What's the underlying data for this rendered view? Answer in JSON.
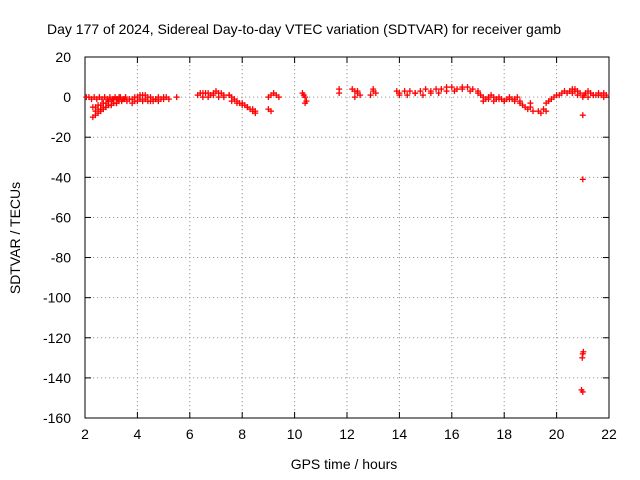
{
  "chart_data": {
    "type": "scatter",
    "title": "Day 177 of 2024, Sidereal Day-to-day VTEC variation (SDTVAR) for receiver gamb",
    "xlabel": "GPS time / hours",
    "ylabel": "SDTVAR / TECUs",
    "xlim": [
      2,
      22
    ],
    "ylim": [
      -160,
      20
    ],
    "xticks": [
      2,
      4,
      6,
      8,
      10,
      12,
      14,
      16,
      18,
      20,
      22
    ],
    "yticks": [
      20,
      0,
      -20,
      -40,
      -60,
      -80,
      -100,
      -120,
      -140,
      -160
    ],
    "grid": true,
    "marker": "+",
    "color": "#ff0000",
    "series": [
      {
        "name": "SDTVAR",
        "x": [
          2.05,
          2.15,
          2.25,
          2.35,
          2.45,
          2.55,
          2.65,
          2.75,
          2.85,
          2.95,
          3.05,
          3.15,
          3.25,
          3.35,
          3.45,
          3.55,
          2.3,
          2.4,
          2.5,
          2.6,
          2.7,
          2.8,
          2.9,
          3.0,
          3.1,
          3.2,
          3.3,
          3.4,
          3.5,
          2.3,
          2.4,
          2.5,
          2.6,
          2.7,
          2.8,
          2.9,
          3.0,
          3.1,
          3.2,
          3.3,
          2.4,
          2.5,
          2.6,
          2.7,
          2.8,
          2.9,
          3.0,
          3.1,
          3.2,
          3.6,
          3.7,
          3.8,
          3.9,
          4.0,
          4.1,
          4.2,
          4.3,
          4.4,
          4.5,
          4.6,
          4.7,
          4.8,
          4.9,
          5.0,
          3.8,
          3.9,
          4.0,
          4.1,
          4.2,
          4.3,
          4.4,
          4.5,
          4.6,
          4.7,
          4.8,
          5.0,
          5.1,
          5.2,
          5.5,
          6.3,
          6.4,
          6.5,
          6.6,
          6.7,
          6.8,
          6.9,
          7.0,
          7.1,
          7.2,
          7.3,
          6.5,
          6.7,
          6.9,
          7.1,
          7.3,
          7.5,
          7.5,
          7.6,
          7.7,
          7.8,
          7.9,
          8.0,
          8.1,
          8.2,
          8.3,
          8.4,
          8.5,
          7.6,
          7.8,
          8.0,
          8.2,
          8.4,
          8.5,
          9.0,
          9.1,
          9.2,
          9.3,
          9.4,
          9.0,
          9.1,
          10.3,
          10.35,
          10.4,
          10.45,
          10.4,
          11.7,
          11.7,
          12.2,
          12.3,
          12.4,
          12.5,
          12.3,
          12.4,
          12.9,
          13.0,
          13.1,
          13.0,
          13.9,
          14.0,
          14.2,
          14.4,
          14.6,
          14.8,
          15.0,
          15.2,
          15.4,
          15.6,
          15.8,
          16.0,
          16.2,
          16.4,
          16.6,
          16.8,
          17.0,
          14.0,
          14.3,
          14.6,
          14.9,
          15.2,
          15.5,
          15.8,
          16.1,
          16.4,
          16.7,
          17.0,
          17.1,
          17.2,
          17.3,
          17.4,
          17.5,
          17.6,
          17.7,
          17.8,
          17.9,
          18.0,
          18.1,
          18.2,
          18.3,
          18.4,
          18.5,
          18.6,
          17.2,
          17.4,
          17.6,
          17.8,
          18.0,
          18.2,
          18.4,
          18.6,
          18.7,
          18.8,
          18.9,
          19.0,
          19.1,
          19.0,
          19.3,
          19.4,
          19.5,
          19.6,
          19.6,
          19.7,
          19.8,
          19.9,
          20.0,
          20.1,
          20.2,
          20.3,
          20.4,
          20.5,
          20.6,
          20.7,
          20.8,
          20.6,
          20.7,
          20.8,
          20.9,
          21.0,
          21.05,
          21.1,
          21.2,
          21.3,
          21.4,
          21.5,
          21.6,
          21.7,
          21.8,
          21.9,
          21.2,
          21.4,
          21.6,
          21.8,
          21.0,
          21.0,
          21.0,
          20.98,
          21.02,
          20.95,
          21.0
        ],
        "y": [
          0,
          0,
          -1,
          0,
          -1,
          0,
          -1,
          0,
          -1,
          0,
          -1,
          0,
          -1,
          0,
          -1,
          0,
          -10,
          -9,
          -8,
          -7,
          -6,
          -5,
          -4,
          -4,
          -3,
          -3,
          -2,
          -2,
          -1,
          -5,
          -5,
          -4,
          -4,
          -3,
          -3,
          -2,
          -2,
          -1,
          -1,
          0,
          -7,
          -6,
          -6,
          -5,
          -5,
          -4,
          -4,
          -3,
          -3,
          -2,
          -1,
          -1,
          0,
          0,
          1,
          1,
          1,
          0,
          0,
          -1,
          -1,
          0,
          -1,
          -1,
          -3,
          -2,
          -2,
          -1,
          -2,
          -1,
          -2,
          -2,
          -2,
          -1,
          -2,
          0,
          0,
          -1,
          0,
          1,
          2,
          2,
          2,
          2,
          1,
          2,
          3,
          2,
          2,
          1,
          0,
          0,
          1,
          0,
          0,
          1,
          1,
          0,
          -1,
          -2,
          -3,
          -3,
          -4,
          -5,
          -6,
          -7,
          -8,
          -2,
          -3,
          -4,
          -5,
          -6,
          -7,
          0,
          1,
          2,
          1,
          0,
          -6,
          -7,
          2,
          1,
          0,
          -2,
          -3,
          4,
          2,
          4,
          3,
          2,
          1,
          0,
          3,
          1,
          3,
          2,
          4,
          3,
          2,
          3,
          3,
          2,
          3,
          4,
          3,
          4,
          4,
          5,
          5,
          4,
          5,
          5,
          4,
          3,
          1,
          1,
          2,
          1,
          2,
          2,
          3,
          3,
          4,
          3,
          2,
          1,
          0,
          -1,
          0,
          1,
          0,
          -1,
          0,
          -1,
          -2,
          -1,
          0,
          -1,
          -1,
          0,
          -2,
          -2,
          -1,
          -2,
          -1,
          -2,
          -1,
          -2,
          -3,
          -4,
          -5,
          -6,
          -5,
          -7,
          -3,
          -7,
          -8,
          -6,
          -7,
          -3,
          -2,
          -1,
          0,
          1,
          1,
          2,
          3,
          2,
          3,
          4,
          4,
          3,
          2,
          3,
          1,
          2,
          0,
          1,
          2,
          3,
          2,
          1,
          1,
          2,
          1,
          2,
          1,
          0,
          1,
          1,
          0,
          -9,
          -41,
          -128,
          -130,
          -127,
          -146,
          -147
        ]
      }
    ]
  }
}
